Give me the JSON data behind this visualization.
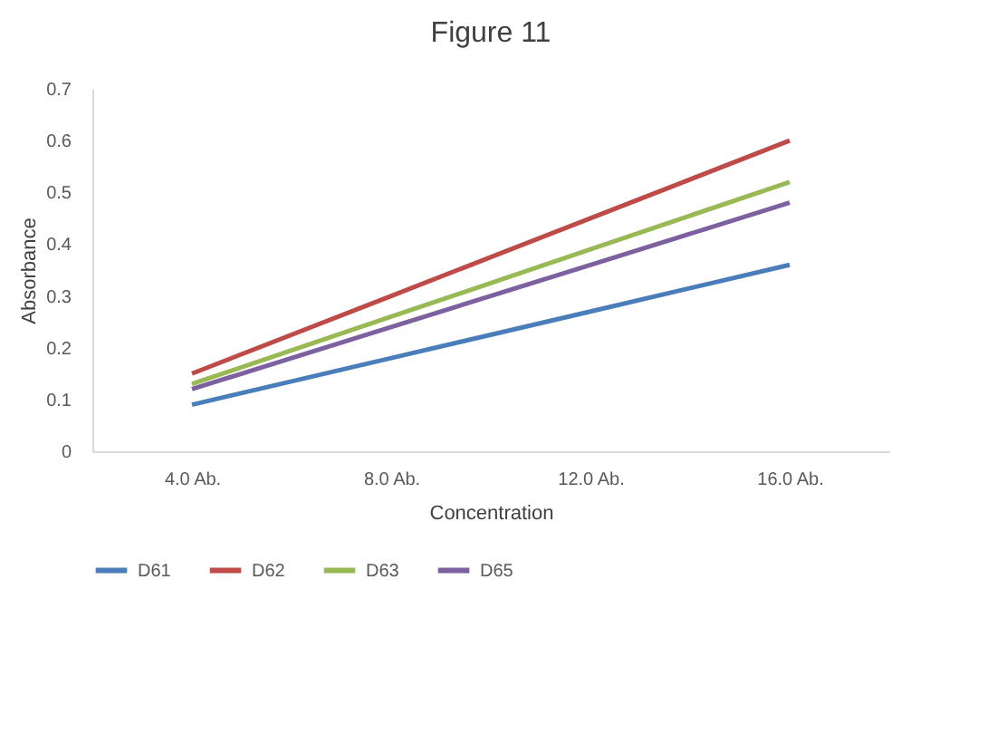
{
  "chart_data": {
    "type": "line",
    "title": "Figure 11",
    "xlabel": "Concentration",
    "ylabel": "Absorbance",
    "categories": [
      "4.0 Ab.",
      "8.0 Ab.",
      "12.0 Ab.",
      "16.0 Ab."
    ],
    "series": [
      {
        "name": "D61",
        "color": "#4a7ebb",
        "values": [
          0.09,
          0.18,
          0.27,
          0.36
        ]
      },
      {
        "name": "D62",
        "color": "#be4b48",
        "values": [
          0.15,
          0.3,
          0.45,
          0.6
        ]
      },
      {
        "name": "D63",
        "color": "#98b954",
        "values": [
          0.13,
          0.26,
          0.39,
          0.52
        ]
      },
      {
        "name": "D65",
        "color": "#7d60a0",
        "values": [
          0.12,
          0.24,
          0.36,
          0.48
        ]
      }
    ],
    "ylim": [
      0,
      0.7
    ],
    "yticks": [
      0,
      0.1,
      0.2,
      0.3,
      0.4,
      0.5,
      0.6,
      0.7
    ],
    "grid": false,
    "legend": "bottom",
    "marker": "none",
    "line_style": "solid"
  }
}
